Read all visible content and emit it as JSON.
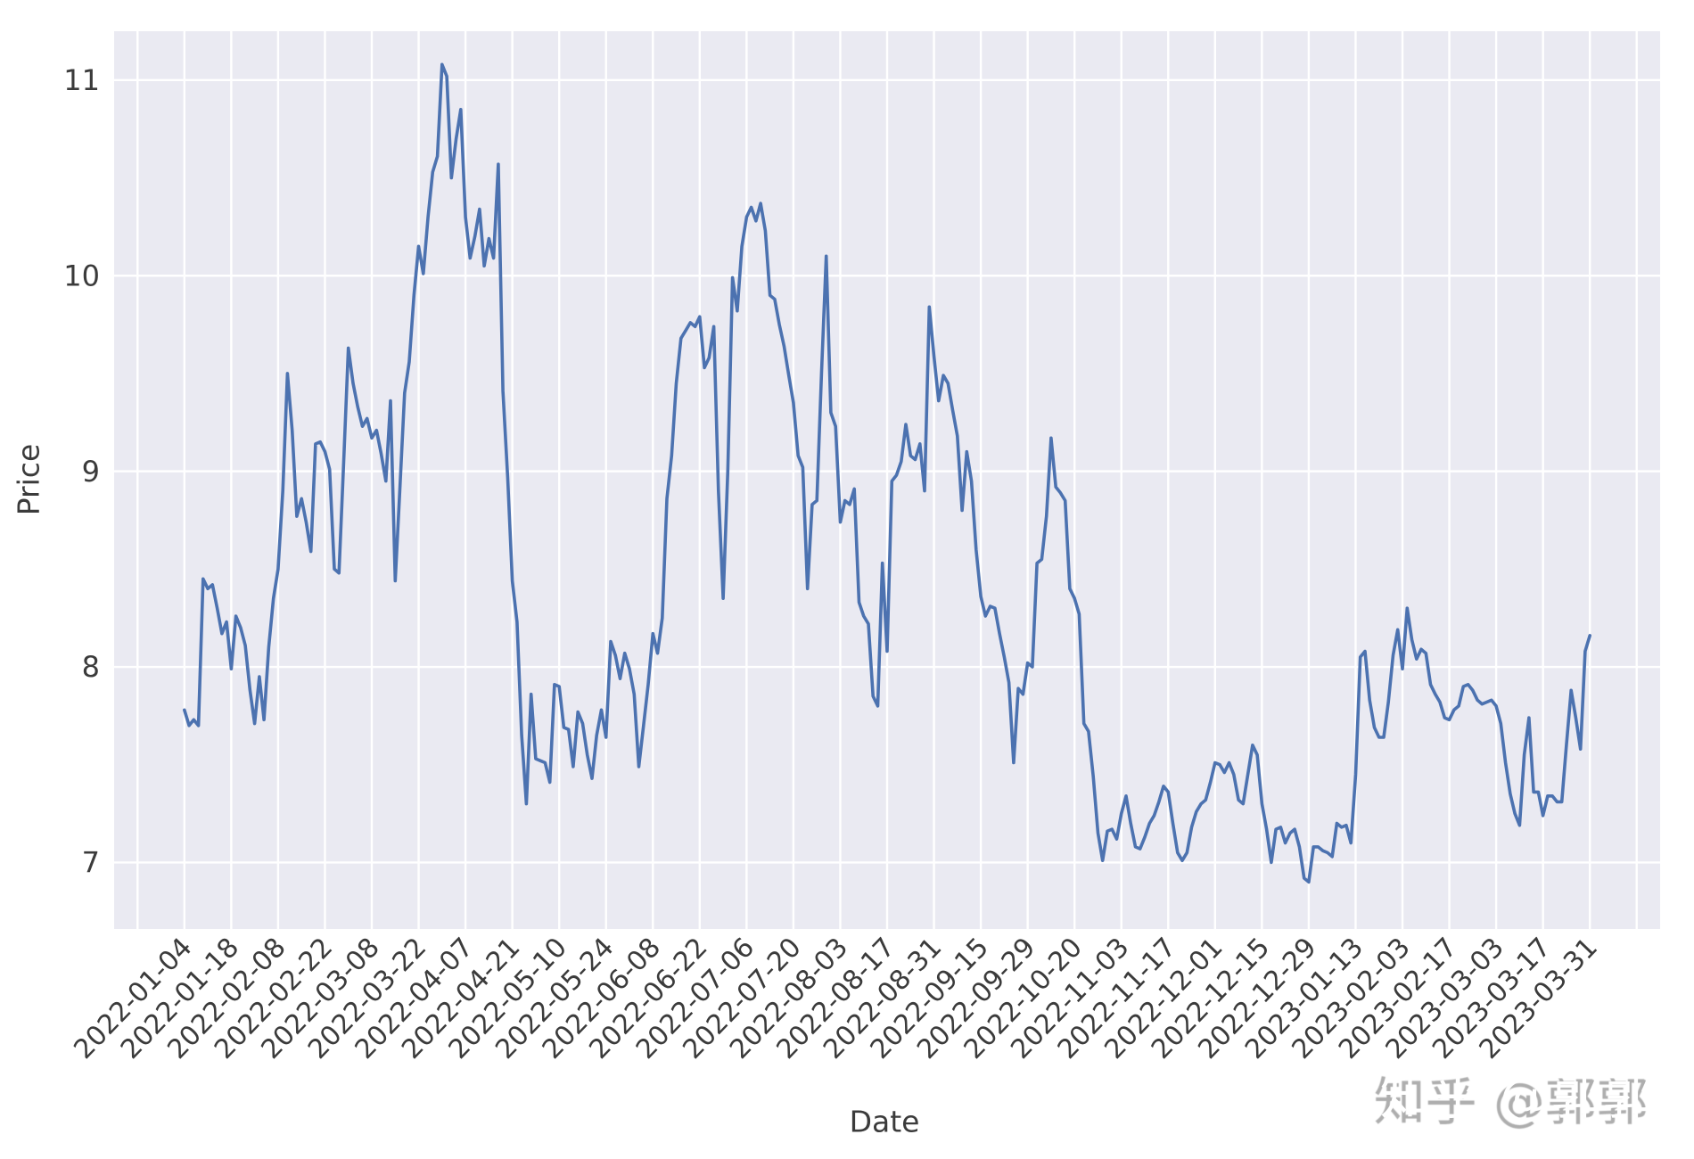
{
  "watermark": {
    "text": "知乎 @郭郭"
  },
  "chart_data": {
    "type": "line",
    "title": "",
    "xlabel": "Date",
    "ylabel": "Price",
    "legend": null,
    "grid": true,
    "background_color": "#eaeaf2",
    "gridline_color": "#ffffff",
    "line_color": "#4c72b0",
    "tick_text_color": "#3b3b3b",
    "xlim": [
      -15,
      315
    ],
    "ylim": [
      6.66,
      11.25
    ],
    "y_ticks": [
      7,
      8,
      9,
      10,
      11
    ],
    "x_tick_step": 10,
    "x_gridline_positions": [
      -10,
      0,
      10,
      20,
      30,
      40,
      50,
      60,
      70,
      80,
      90,
      100,
      110,
      120,
      130,
      140,
      150,
      160,
      170,
      180,
      190,
      200,
      210,
      220,
      230,
      240,
      250,
      260,
      270,
      280,
      290,
      300,
      310
    ],
    "x_tick_positions": [
      0,
      10,
      20,
      30,
      40,
      50,
      60,
      70,
      80,
      90,
      100,
      110,
      120,
      130,
      140,
      150,
      160,
      170,
      180,
      190,
      200,
      210,
      220,
      230,
      240,
      250,
      260,
      270,
      280,
      290,
      300
    ],
    "x_tick_labels": [
      "2022-01-04",
      "2022-01-18",
      "2022-02-08",
      "2022-02-22",
      "2022-03-08",
      "2022-03-22",
      "2022-04-07",
      "2022-04-21",
      "2022-05-10",
      "2022-05-24",
      "2022-06-08",
      "2022-06-22",
      "2022-07-06",
      "2022-07-20",
      "2022-08-03",
      "2022-08-17",
      "2022-08-31",
      "2022-09-15",
      "2022-09-29",
      "2022-10-20",
      "2022-11-03",
      "2022-11-17",
      "2022-12-01",
      "2022-12-15",
      "2022-12-29",
      "2023-01-13",
      "2023-02-03",
      "2023-02-17",
      "2023-03-03",
      "2023-03-17",
      "2023-03-31"
    ],
    "series": [
      {
        "name": "Price",
        "x_start_index": 0,
        "values": [
          7.78,
          7.7,
          7.73,
          7.7,
          8.45,
          8.4,
          8.42,
          8.3,
          8.17,
          8.23,
          7.99,
          8.26,
          8.2,
          8.11,
          7.88,
          7.71,
          7.95,
          7.73,
          8.1,
          8.35,
          8.5,
          8.9,
          9.5,
          9.21,
          8.77,
          8.86,
          8.74,
          8.59,
          9.14,
          9.15,
          9.1,
          9.01,
          8.5,
          8.48,
          9.05,
          9.63,
          9.45,
          9.33,
          9.23,
          9.27,
          9.17,
          9.21,
          9.09,
          8.95,
          9.36,
          8.44,
          8.91,
          9.4,
          9.56,
          9.9,
          10.15,
          10.01,
          10.3,
          10.53,
          10.61,
          11.08,
          11.02,
          10.5,
          10.7,
          10.85,
          10.3,
          10.09,
          10.2,
          10.34,
          10.05,
          10.19,
          10.09,
          10.57,
          9.41,
          8.97,
          8.44,
          8.23,
          7.65,
          7.3,
          7.86,
          7.53,
          7.52,
          7.51,
          7.41,
          7.91,
          7.9,
          7.69,
          7.68,
          7.49,
          7.77,
          7.71,
          7.55,
          7.43,
          7.65,
          7.78,
          7.64,
          8.13,
          8.06,
          7.94,
          8.07,
          7.99,
          7.86,
          7.49,
          7.7,
          7.91,
          8.17,
          8.07,
          8.25,
          8.86,
          9.08,
          9.45,
          9.68,
          9.72,
          9.76,
          9.74,
          9.79,
          9.53,
          9.58,
          9.74,
          8.9,
          8.35,
          9.0,
          9.99,
          9.82,
          10.15,
          10.3,
          10.35,
          10.28,
          10.37,
          10.23,
          9.9,
          9.88,
          9.75,
          9.64,
          9.49,
          9.35,
          9.08,
          9.02,
          8.4,
          8.83,
          8.85,
          9.5,
          10.1,
          9.3,
          9.23,
          8.74,
          8.85,
          8.83,
          8.91,
          8.33,
          8.26,
          8.22,
          7.85,
          7.8,
          8.53,
          8.08,
          8.95,
          8.98,
          9.05,
          9.24,
          9.08,
          9.06,
          9.14,
          8.9,
          9.84,
          9.59,
          9.36,
          9.49,
          9.45,
          9.31,
          9.18,
          8.8,
          9.1,
          8.95,
          8.6,
          8.36,
          8.26,
          8.31,
          8.3,
          8.17,
          8.05,
          7.92,
          7.51,
          7.89,
          7.86,
          8.02,
          8.0,
          8.53,
          8.55,
          8.77,
          9.17,
          8.92,
          8.89,
          8.85,
          8.4,
          8.35,
          8.27,
          7.71,
          7.67,
          7.44,
          7.15,
          7.01,
          7.16,
          7.17,
          7.12,
          7.25,
          7.34,
          7.2,
          7.08,
          7.07,
          7.13,
          7.2,
          7.24,
          7.31,
          7.39,
          7.36,
          7.2,
          7.05,
          7.01,
          7.05,
          7.18,
          7.26,
          7.3,
          7.32,
          7.41,
          7.51,
          7.5,
          7.46,
          7.51,
          7.45,
          7.32,
          7.3,
          7.45,
          7.6,
          7.55,
          7.3,
          7.17,
          7.0,
          7.17,
          7.18,
          7.1,
          7.15,
          7.17,
          7.08,
          6.92,
          6.9,
          7.08,
          7.08,
          7.06,
          7.05,
          7.03,
          7.2,
          7.18,
          7.19,
          7.1,
          7.45,
          8.05,
          8.08,
          7.83,
          7.69,
          7.64,
          7.64,
          7.82,
          8.06,
          8.19,
          7.99,
          8.3,
          8.14,
          8.04,
          8.09,
          8.07,
          7.91,
          7.86,
          7.82,
          7.74,
          7.73,
          7.78,
          7.8,
          7.9,
          7.91,
          7.88,
          7.83,
          7.81,
          7.82,
          7.83,
          7.8,
          7.71,
          7.51,
          7.35,
          7.25,
          7.19,
          7.55,
          7.74,
          7.36,
          7.36,
          7.24,
          7.34,
          7.34,
          7.31,
          7.31,
          7.6,
          7.88,
          7.74,
          7.58,
          8.08,
          8.16
        ]
      }
    ]
  }
}
